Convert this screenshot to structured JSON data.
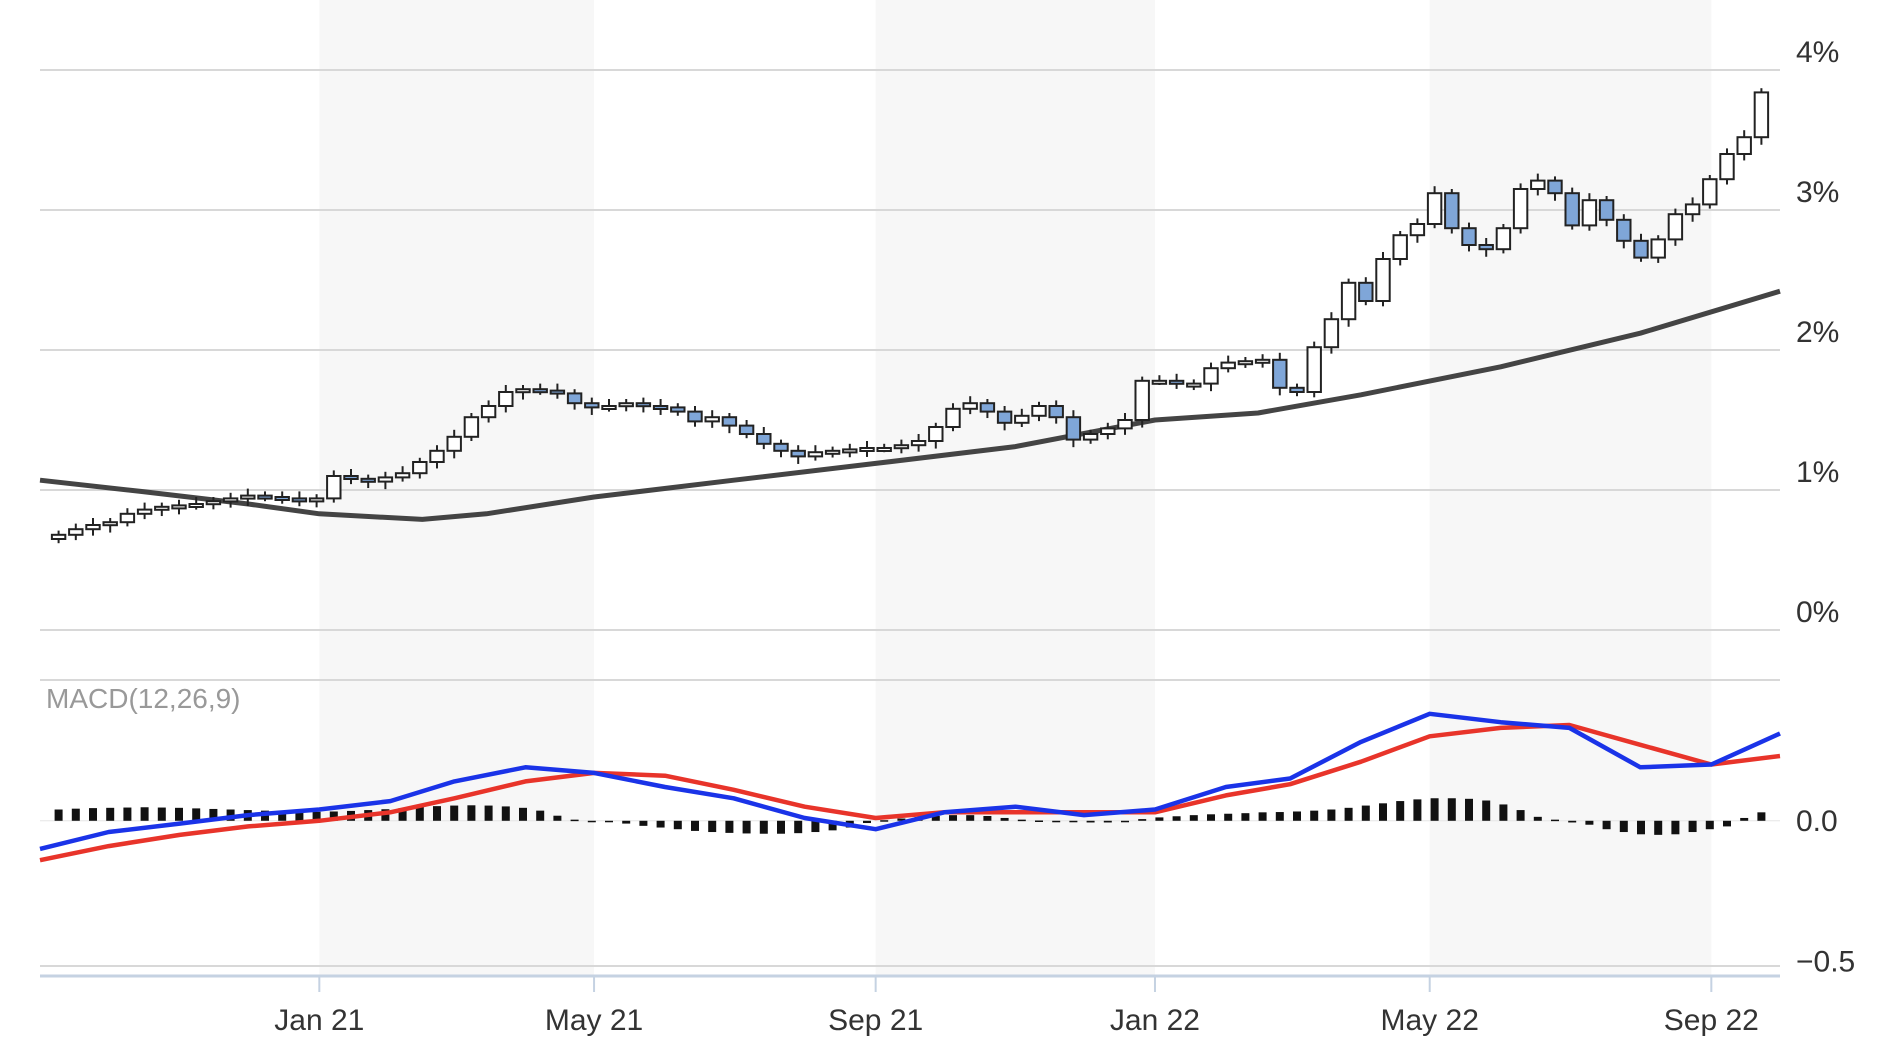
{
  "chart_data": {
    "type": "candlestick",
    "y_axis": {
      "ticks": [
        "0%",
        "1%",
        "2%",
        "3%",
        "4%"
      ],
      "range": [
        0,
        4
      ]
    },
    "x_axis": {
      "ticks": [
        "Jan 21",
        "May 21",
        "Sep 21",
        "Jan 22",
        "May 22",
        "Sep 22"
      ],
      "range": [
        "2020-09",
        "2022-10"
      ]
    },
    "shaded_bands": [
      [
        "2021-01",
        "2021-05"
      ],
      [
        "2021-09",
        "2022-01"
      ],
      [
        "2022-05",
        "2022-09"
      ]
    ],
    "candles_weekly_close": [
      0.68,
      0.72,
      0.75,
      0.77,
      0.83,
      0.86,
      0.88,
      0.89,
      0.9,
      0.92,
      0.94,
      0.96,
      0.95,
      0.94,
      0.93,
      0.94,
      1.1,
      1.08,
      1.06,
      1.09,
      1.12,
      1.2,
      1.28,
      1.38,
      1.52,
      1.6,
      1.7,
      1.72,
      1.71,
      1.69,
      1.62,
      1.59,
      1.6,
      1.62,
      1.6,
      1.59,
      1.56,
      1.49,
      1.52,
      1.46,
      1.4,
      1.33,
      1.28,
      1.24,
      1.27,
      1.28,
      1.29,
      1.3,
      1.3,
      1.32,
      1.35,
      1.45,
      1.58,
      1.62,
      1.56,
      1.48,
      1.53,
      1.6,
      1.52,
      1.36,
      1.4,
      1.44,
      1.5,
      1.78,
      1.78,
      1.76,
      1.76,
      1.87,
      1.91,
      1.92,
      1.93,
      1.73,
      1.7,
      2.02,
      2.22,
      2.48,
      2.35,
      2.65,
      2.82,
      2.9,
      3.12,
      2.87,
      2.75,
      2.72,
      2.87,
      3.15,
      3.21,
      3.12,
      2.89,
      3.07,
      2.93,
      2.78,
      2.66,
      2.79,
      2.97,
      3.04,
      3.22,
      3.4,
      3.52,
      3.84
    ],
    "moving_average": [
      [
        "2020-09-01",
        1.07
      ],
      [
        "2020-10-15",
        0.99
      ],
      [
        "2020-12-01",
        0.9
      ],
      [
        "2021-01-01",
        0.83
      ],
      [
        "2021-02-15",
        0.79
      ],
      [
        "2021-03-15",
        0.83
      ],
      [
        "2021-05-01",
        0.95
      ],
      [
        "2021-07-01",
        1.07
      ],
      [
        "2021-09-01",
        1.19
      ],
      [
        "2021-11-01",
        1.31
      ],
      [
        "2022-01-01",
        1.5
      ],
      [
        "2022-02-15",
        1.55
      ],
      [
        "2022-04-01",
        1.68
      ],
      [
        "2022-06-01",
        1.88
      ],
      [
        "2022-08-01",
        2.12
      ],
      [
        "2022-10-01",
        2.42
      ]
    ],
    "macd": {
      "label": "MACD(12,26,9)",
      "y_ticks": [
        "0.0",
        "−0.5"
      ],
      "range": [
        -0.53,
        0.5
      ],
      "macd_color": "#1a33e8",
      "signal_color": "#e8342a",
      "macd_line": [
        [
          "2020-09-01",
          -0.1
        ],
        [
          "2020-10-01",
          -0.04
        ],
        [
          "2020-11-01",
          -0.01
        ],
        [
          "2020-12-01",
          0.02
        ],
        [
          "2021-01-01",
          0.04
        ],
        [
          "2021-02-01",
          0.07
        ],
        [
          "2021-03-01",
          0.14
        ],
        [
          "2021-04-01",
          0.19
        ],
        [
          "2021-05-01",
          0.17
        ],
        [
          "2021-06-01",
          0.12
        ],
        [
          "2021-07-01",
          0.08
        ],
        [
          "2021-08-01",
          0.01
        ],
        [
          "2021-09-01",
          -0.03
        ],
        [
          "2021-10-01",
          0.03
        ],
        [
          "2021-11-01",
          0.05
        ],
        [
          "2021-12-01",
          0.02
        ],
        [
          "2022-01-01",
          0.04
        ],
        [
          "2022-02-01",
          0.12
        ],
        [
          "2022-03-01",
          0.15
        ],
        [
          "2022-04-01",
          0.28
        ],
        [
          "2022-05-01",
          0.38
        ],
        [
          "2022-06-01",
          0.35
        ],
        [
          "2022-07-01",
          0.33
        ],
        [
          "2022-08-01",
          0.19
        ],
        [
          "2022-09-01",
          0.2
        ],
        [
          "2022-10-01",
          0.31
        ]
      ],
      "signal_line": [
        [
          "2020-09-01",
          -0.14
        ],
        [
          "2020-10-01",
          -0.09
        ],
        [
          "2020-11-01",
          -0.05
        ],
        [
          "2020-12-01",
          -0.02
        ],
        [
          "2021-01-01",
          0.0
        ],
        [
          "2021-02-01",
          0.03
        ],
        [
          "2021-03-01",
          0.08
        ],
        [
          "2021-04-01",
          0.14
        ],
        [
          "2021-05-01",
          0.17
        ],
        [
          "2021-06-01",
          0.16
        ],
        [
          "2021-07-01",
          0.11
        ],
        [
          "2021-08-01",
          0.05
        ],
        [
          "2021-09-01",
          0.01
        ],
        [
          "2021-10-01",
          0.03
        ],
        [
          "2021-11-01",
          0.03
        ],
        [
          "2021-12-01",
          0.03
        ],
        [
          "2022-01-01",
          0.03
        ],
        [
          "2022-02-01",
          0.09
        ],
        [
          "2022-03-01",
          0.13
        ],
        [
          "2022-04-01",
          0.21
        ],
        [
          "2022-05-01",
          0.3
        ],
        [
          "2022-06-01",
          0.33
        ],
        [
          "2022-07-01",
          0.34
        ],
        [
          "2022-08-01",
          0.27
        ],
        [
          "2022-09-01",
          0.2
        ],
        [
          "2022-10-01",
          0.23
        ]
      ],
      "histogram_weekly": [
        0.04,
        0.043,
        0.045,
        0.046,
        0.047,
        0.048,
        0.047,
        0.046,
        0.044,
        0.042,
        0.04,
        0.038,
        0.036,
        0.034,
        0.033,
        0.032,
        0.033,
        0.035,
        0.038,
        0.041,
        0.045,
        0.049,
        0.052,
        0.054,
        0.055,
        0.054,
        0.051,
        0.046,
        0.036,
        0.018,
        0.004,
        0.0,
        -0.004,
        -0.01,
        -0.018,
        -0.024,
        -0.03,
        -0.036,
        -0.04,
        -0.043,
        -0.045,
        -0.046,
        -0.046,
        -0.044,
        -0.04,
        -0.034,
        -0.024,
        -0.008,
        0.002,
        0.008,
        0.013,
        0.017,
        0.02,
        0.02,
        0.017,
        0.01,
        0.004,
        0.001,
        -0.002,
        -0.004,
        -0.006,
        -0.006,
        -0.003,
        0.006,
        0.012,
        0.016,
        0.02,
        0.023,
        0.025,
        0.027,
        0.03,
        0.031,
        0.033,
        0.036,
        0.04,
        0.046,
        0.054,
        0.062,
        0.07,
        0.076,
        0.08,
        0.08,
        0.078,
        0.072,
        0.058,
        0.038,
        0.014,
        0.004,
        -0.006,
        -0.014,
        -0.03,
        -0.04,
        -0.048,
        -0.05,
        -0.048,
        -0.04,
        -0.03,
        -0.02,
        0.01,
        0.03
      ]
    }
  }
}
